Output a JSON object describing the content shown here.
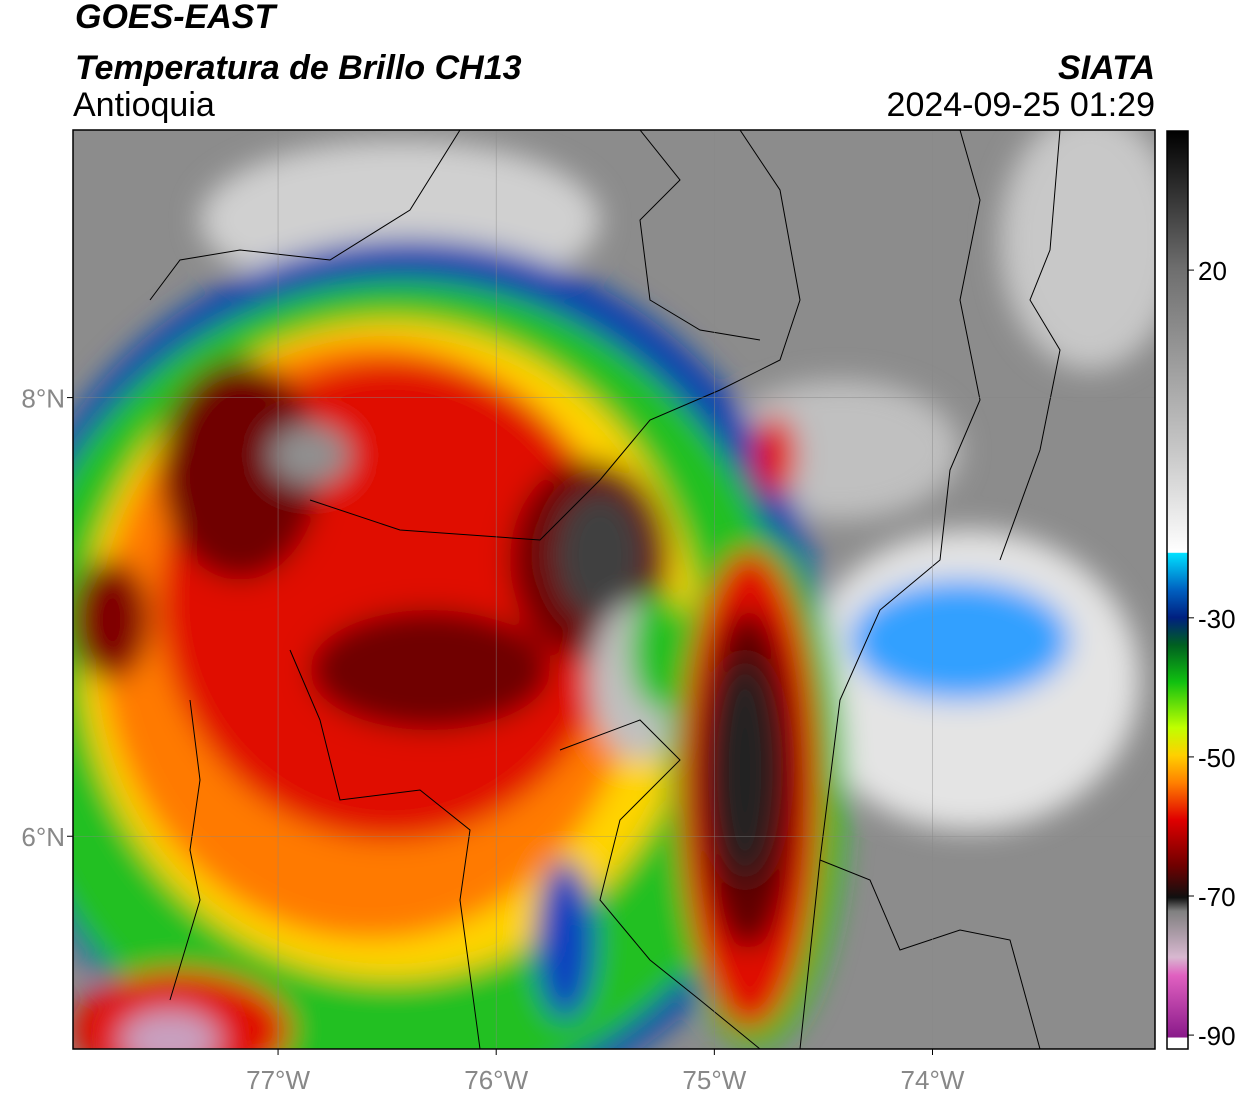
{
  "header": {
    "title": "GOES-EAST",
    "subtitle": "Temperatura de Brillo CH13",
    "region": "Antioquia",
    "source": "SIATA",
    "datetime": "2024-09-25 01:29"
  },
  "map": {
    "lonlim": [
      -77.94,
      -72.98
    ],
    "latlim": [
      5.03,
      9.22
    ],
    "lonticks": [
      {
        "value": -77,
        "label": "77°W"
      },
      {
        "value": -76,
        "label": "76°W"
      },
      {
        "value": -75,
        "label": "75°W"
      },
      {
        "value": -74,
        "label": "74°W"
      }
    ],
    "latticks": [
      {
        "value": 8,
        "label": "8°N"
      },
      {
        "value": 6,
        "label": "6°N"
      }
    ]
  },
  "colorbar": {
    "lim": [
      -92,
      40
    ],
    "ticks": [
      20,
      -30,
      -50,
      -70,
      -90
    ]
  }
}
